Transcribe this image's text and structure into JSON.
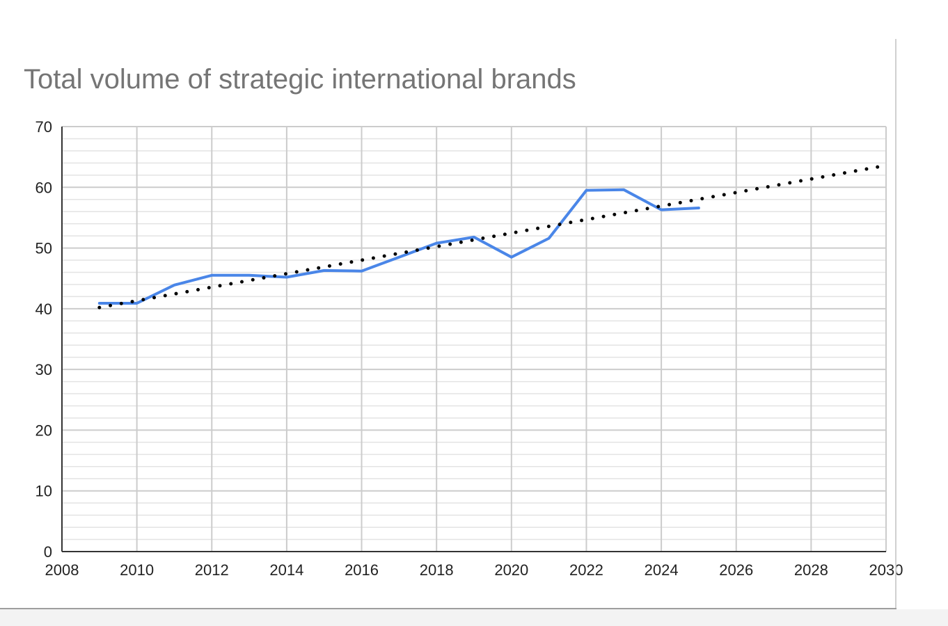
{
  "chart_data": {
    "type": "line",
    "title": "Total volume of strategic international brands",
    "xlabel": "",
    "ylabel": "",
    "xlim": [
      2008,
      2030
    ],
    "ylim": [
      0,
      70
    ],
    "xticks": [
      2008,
      2010,
      2012,
      2014,
      2016,
      2018,
      2020,
      2022,
      2024,
      2026,
      2028,
      2030
    ],
    "yticks": [
      0,
      10,
      20,
      30,
      40,
      50,
      60,
      70
    ],
    "minor_y_step": 2,
    "grid": true,
    "legend": "none",
    "colors": {
      "series": "#4a86e8",
      "trend": "#000000",
      "grid_major": "#cccccc",
      "grid_minor": "#e3e3e3",
      "axis": "#333333",
      "title": "#757575"
    },
    "series": [
      {
        "name": "Total volume",
        "style": "solid",
        "x": [
          2009,
          2010,
          2011,
          2012,
          2013,
          2014,
          2015,
          2016,
          2017,
          2018,
          2019,
          2020,
          2021,
          2022,
          2023,
          2024,
          2025
        ],
        "values": [
          40.9,
          40.9,
          43.9,
          45.5,
          45.5,
          45.2,
          46.3,
          46.2,
          48.5,
          50.8,
          51.8,
          48.5,
          51.6,
          59.5,
          59.6,
          56.3,
          56.6
        ]
      },
      {
        "name": "Trendline",
        "style": "dotted",
        "x": [
          2009,
          2030
        ],
        "values": [
          40.2,
          63.6
        ]
      }
    ]
  }
}
